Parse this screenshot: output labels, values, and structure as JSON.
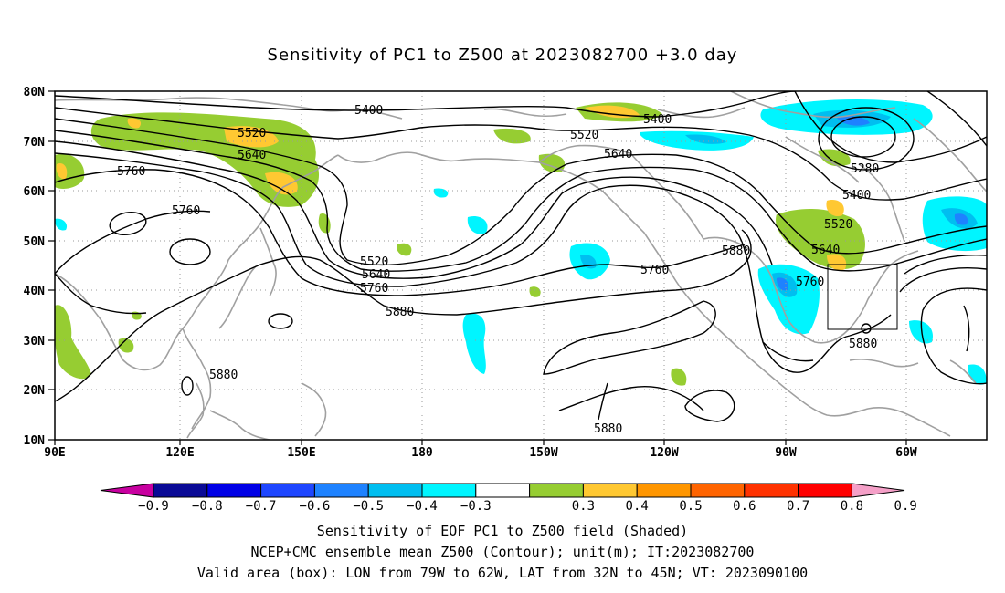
{
  "title": "Sensitivity of PC1 to Z500 at 2023082700 +3.0 day",
  "lat_labels": [
    "80N",
    "70N",
    "60N",
    "50N",
    "40N",
    "30N",
    "20N",
    "10N"
  ],
  "lon_labels": [
    "90E",
    "120E",
    "150E",
    "180",
    "150W",
    "120W",
    "90W",
    "60W"
  ],
  "contour_labels": {
    "c5400a": "5400",
    "c5400b": "5400",
    "c5520a": "5520",
    "c5520b": "5520",
    "c5640a": "5640",
    "c5640b": "5640",
    "c5760a": "5760",
    "c5760b": "5760",
    "c5880a": "5880",
    "c5880b": "5880",
    "c5880c": "5880",
    "c5280": "5280",
    "c5400c": "5400",
    "c5520c": "5520",
    "c5640c": "5640",
    "c5760c": "5760",
    "c5520d": "5520",
    "c5640d": "5640",
    "c5760d": "5760",
    "c5880d": "5880",
    "c5880e": "5880"
  },
  "colorbar": {
    "labels": [
      "−0.9",
      "−0.8",
      "−0.7",
      "−0.6",
      "−0.5",
      "−0.4",
      "−0.3",
      "0.3",
      "0.4",
      "0.5",
      "0.6",
      "0.7",
      "0.8",
      "0.9"
    ],
    "colors": [
      "#0a0a96",
      "#0000e6",
      "#1e46ff",
      "#1e82ff",
      "#00bef0",
      "#00f5ff",
      "#ffffff",
      "#96cd32",
      "#ffc832",
      "#ff9600",
      "#ff6400",
      "#ff3200",
      "#ff0000"
    ],
    "left_arrow_color": "#c800a0",
    "right_arrow_color": "#f5a0c8"
  },
  "footer": {
    "line1": "Sensitivity of EOF PC1 to Z500 field (Shaded)",
    "line2": "NCEP+CMC ensemble mean Z500 (Contour); unit(m); IT:2023082700",
    "line3": "Valid area (box): LON from 79W to 62W, LAT from 32N to 45N; VT: 2023090100"
  }
}
